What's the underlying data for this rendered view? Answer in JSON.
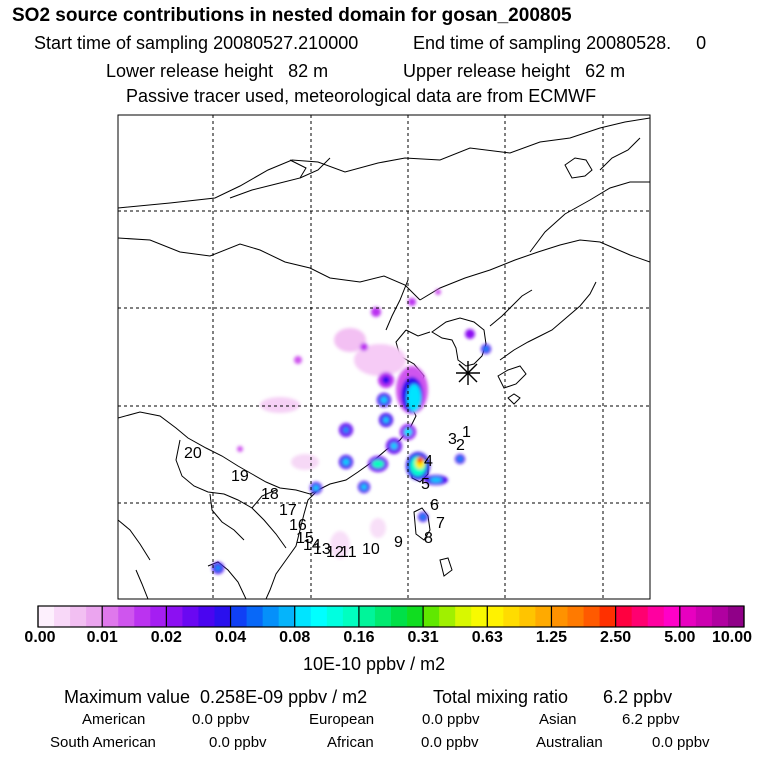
{
  "header": {
    "title": "SO2 source contributions in nested domain for gosan_200805",
    "start_sampling": "Start time of sampling 20080527.210000",
    "end_sampling": "End time of sampling 20080528.     0",
    "lower_release": "Lower release height   82 m",
    "upper_release": "Upper release height   62 m",
    "tracer_note": "Passive tracer used, meteorological data are from ECMWF"
  },
  "map": {
    "receptor_marker": "star",
    "source_labels": [
      "1",
      "2",
      "3",
      "4",
      "5",
      "6",
      "7",
      "8",
      "9",
      "10",
      "11",
      "12",
      "13",
      "14",
      "15",
      "16",
      "17",
      "18",
      "19",
      "20"
    ],
    "plume_colors": [
      "#ff66ff",
      "#bb33ff",
      "#4400ee",
      "#2266ff",
      "#00ccff",
      "#00ffcc",
      "#33ee33",
      "#ffee00",
      "#ff6600",
      "#ee0000"
    ]
  },
  "colorbar": {
    "tick_labels": [
      "0.00",
      "0.01",
      "0.02",
      "0.04",
      "0.08",
      "0.16",
      "0.31",
      "0.63",
      "1.25",
      "2.50",
      "5.00",
      "10.00"
    ],
    "colors": [
      "#fdf0fd",
      "#f8d8f8",
      "#f2bff2",
      "#eba5ef",
      "#df78ec",
      "#cf55ee",
      "#bb33f0",
      "#a51ef2",
      "#8c10f2",
      "#6a08f2",
      "#4a05f0",
      "#2a10ee",
      "#1040f5",
      "#0868f8",
      "#0590fa",
      "#05b4fb",
      "#00e4ff",
      "#00ffff",
      "#00ffe0",
      "#00ffc0",
      "#00f59a",
      "#00ea70",
      "#00e048",
      "#10dd20",
      "#60e800",
      "#a0f000",
      "#d8f800",
      "#f8fa00",
      "#fff200",
      "#ffdc00",
      "#ffc400",
      "#ffaa00",
      "#ff9200",
      "#ff7a00",
      "#ff5a00",
      "#ff3000",
      "#ff0040",
      "#ff0070",
      "#ff00a0",
      "#ff00c8",
      "#e800c0",
      "#cc00b0",
      "#b000a0",
      "#900088"
    ],
    "unit": "10E-10 ppbv / m2"
  },
  "summary": {
    "max_value": "Maximum value  0.258E-09 ppbv / m2",
    "total_mixing": "Total mixing ratio       6.2 ppbv",
    "regions": [
      {
        "name": "American",
        "value": "0.0 ppbv"
      },
      {
        "name": "European",
        "value": "0.0 ppbv"
      },
      {
        "name": "Asian",
        "value": "6.2 ppbv"
      },
      {
        "name": "South American",
        "value": "0.0 ppbv"
      },
      {
        "name": "African",
        "value": "0.0 ppbv"
      },
      {
        "name": "Australian",
        "value": "0.0 ppbv"
      }
    ]
  }
}
